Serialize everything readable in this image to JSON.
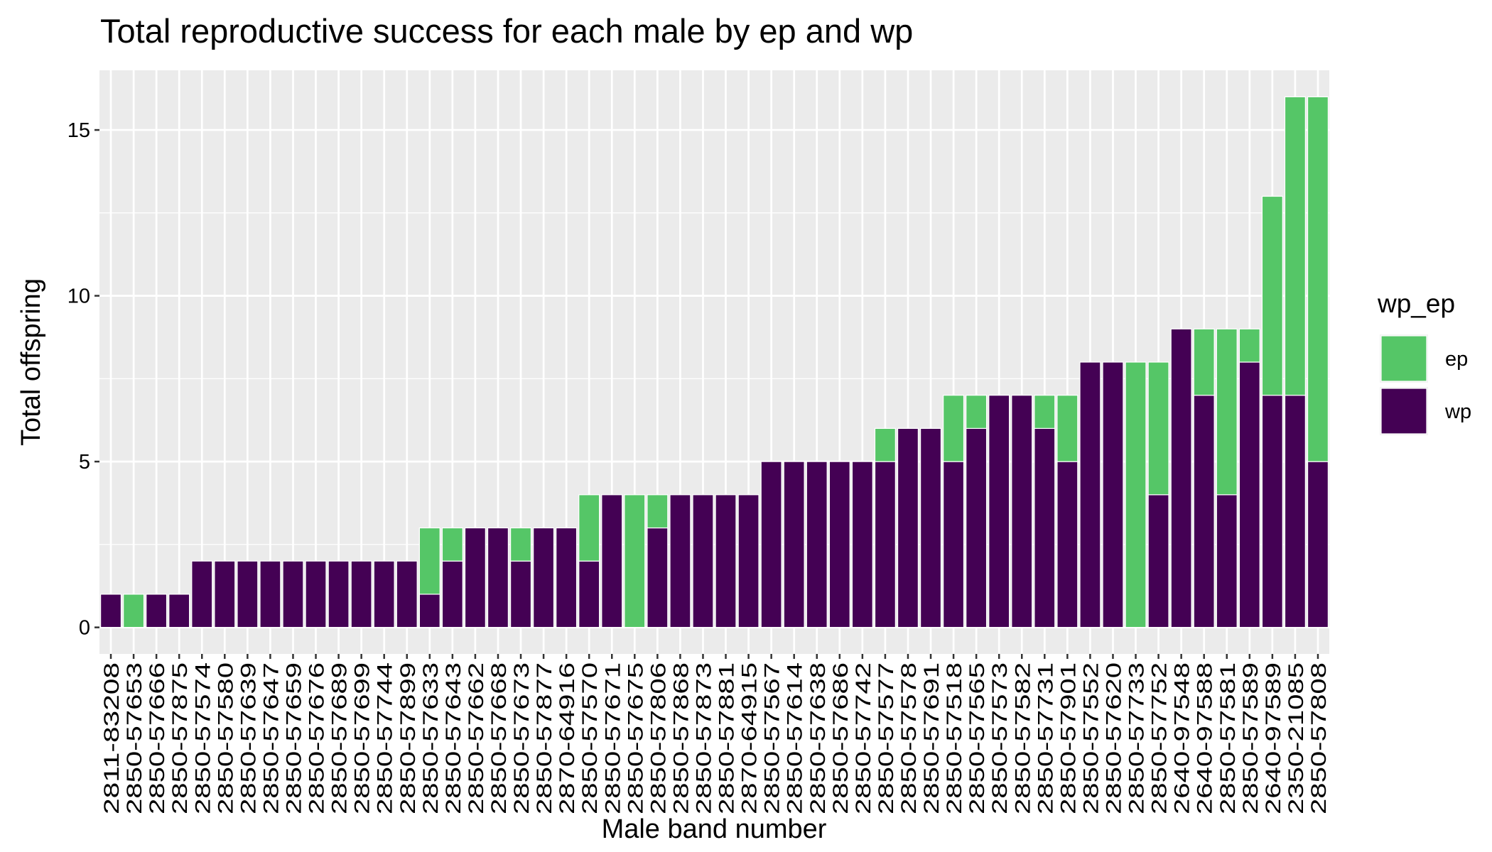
{
  "chart_data": {
    "type": "stacked_bar",
    "title": "Total reproductive success for each male by ep and wp",
    "xlabel": "Male band number",
    "ylabel": "Total offspring",
    "legend_title": "wp_ep",
    "categories": [
      "2811-83208",
      "2850-57653",
      "2850-57666",
      "2850-57875",
      "2850-57574",
      "2850-57580",
      "2850-57639",
      "2850-57647",
      "2850-57659",
      "2850-57676",
      "2850-57689",
      "2850-57699",
      "2850-57744",
      "2850-57899",
      "2850-57633",
      "2850-57643",
      "2850-57662",
      "2850-57668",
      "2850-57673",
      "2850-57877",
      "2870-64916",
      "2850-57570",
      "2850-57671",
      "2850-57675",
      "2850-57806",
      "2850-57868",
      "2850-57873",
      "2850-57881",
      "2870-64915",
      "2850-57567",
      "2850-57614",
      "2850-57638",
      "2850-57686",
      "2850-57742",
      "2850-57577",
      "2850-57578",
      "2850-57691",
      "2850-57518",
      "2850-57565",
      "2850-57573",
      "2850-57582",
      "2850-57731",
      "2850-57901",
      "2850-57552",
      "2850-57620",
      "2850-57733",
      "2850-57752",
      "2640-97548",
      "2640-97588",
      "2850-57581",
      "2850-57589",
      "2640-97589",
      "2350-21085",
      "2850-57808"
    ],
    "series": [
      {
        "name": "ep",
        "color": "#55c667",
        "values": [
          0,
          1,
          0,
          0,
          0,
          0,
          0,
          0,
          0,
          0,
          0,
          0,
          0,
          0,
          2,
          1,
          0,
          0,
          1,
          0,
          0,
          2,
          0,
          4,
          1,
          0,
          0,
          0,
          0,
          0,
          0,
          0,
          0,
          0,
          1,
          0,
          0,
          2,
          1,
          0,
          0,
          1,
          2,
          0,
          0,
          8,
          4,
          0,
          2,
          5,
          1,
          6,
          9,
          11
        ]
      },
      {
        "name": "wp",
        "color": "#440154",
        "values": [
          1,
          0,
          1,
          1,
          2,
          2,
          2,
          2,
          2,
          2,
          2,
          2,
          2,
          2,
          1,
          2,
          3,
          3,
          2,
          3,
          3,
          2,
          4,
          0,
          3,
          4,
          4,
          4,
          4,
          5,
          5,
          5,
          5,
          5,
          5,
          6,
          6,
          5,
          6,
          7,
          7,
          6,
          5,
          8,
          8,
          0,
          4,
          9,
          7,
          4,
          8,
          7,
          7,
          5
        ]
      }
    ],
    "ylim": [
      -0.8,
      16.8
    ],
    "yticks": [
      0,
      5,
      10,
      15
    ],
    "grid": true,
    "legend_position": "right"
  }
}
